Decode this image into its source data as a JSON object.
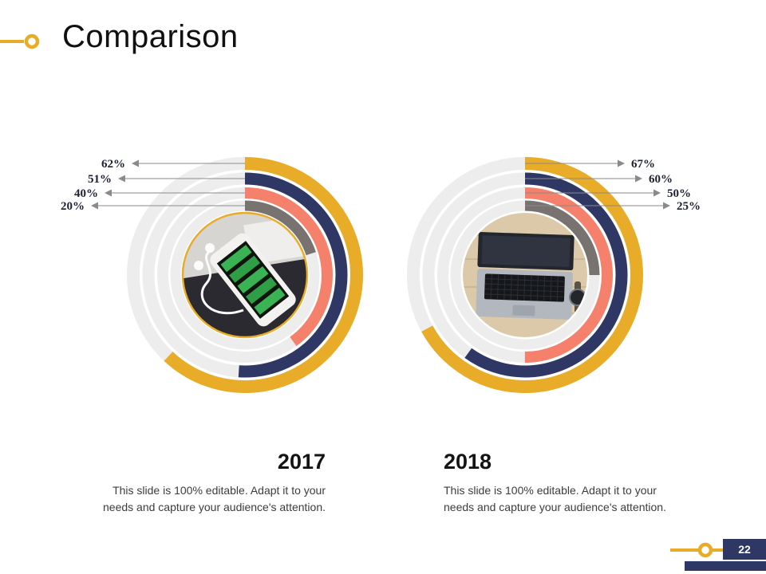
{
  "slide": {
    "title": "Comparison",
    "page_number": "22"
  },
  "colors": {
    "gold": "#E8AC28",
    "navy": "#2F3864",
    "salmon": "#F5806B",
    "gray": "#787271",
    "track": "#EDEDED",
    "arrow": "#8a8a8a"
  },
  "chart_data": [
    {
      "type": "radial-bar",
      "year": "2017",
      "rings_order": "outer-to-inner",
      "categories": [
        "outer-ring",
        "second-ring",
        "third-ring",
        "inner-ring"
      ],
      "values": [
        62,
        51,
        40,
        20
      ],
      "labels": [
        "62%",
        "51%",
        "40%",
        "20%"
      ],
      "ring_colors": [
        "gold",
        "navy",
        "salmon",
        "gray"
      ],
      "start_angle_deg": 0,
      "direction": "clockwise",
      "label_side": "left",
      "center_image": "smartphone-with-earphones-photo",
      "caption": "This slide is 100% editable. Adapt it to your needs and capture your audience's attention."
    },
    {
      "type": "radial-bar",
      "year": "2018",
      "rings_order": "outer-to-inner",
      "categories": [
        "outer-ring",
        "second-ring",
        "third-ring",
        "inner-ring"
      ],
      "values": [
        67,
        60,
        50,
        25
      ],
      "labels": [
        "67%",
        "60%",
        "50%",
        "25%"
      ],
      "ring_colors": [
        "gold",
        "navy",
        "salmon",
        "gray"
      ],
      "start_angle_deg": 0,
      "direction": "clockwise",
      "label_side": "right",
      "center_image": "laptop-top-view-photo",
      "caption": "This slide is 100% editable. Adapt it to your needs and capture your audience's attention."
    }
  ]
}
